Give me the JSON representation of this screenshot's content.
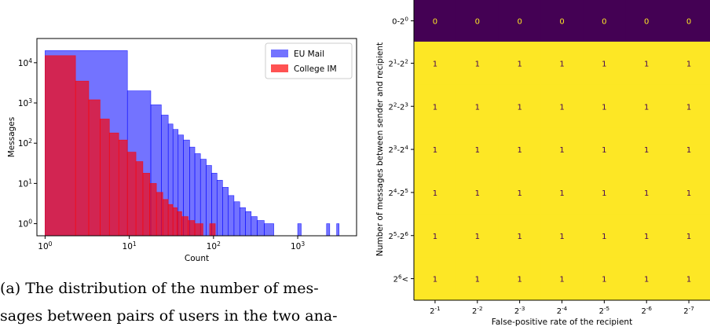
{
  "caption": {
    "line1": "(a) The distribution of the number of mes-",
    "line2": "sages between pairs of users in the two ana-"
  },
  "chart_data": [
    {
      "type": "bar",
      "subtype": "histogram",
      "xlabel": "Count",
      "ylabel": "Messages",
      "xscale": "log",
      "yscale": "log",
      "xlim": [
        0.8,
        5000
      ],
      "ylim": [
        0.5,
        40000
      ],
      "x_ticks": [
        "10^0",
        "10^1",
        "10^2",
        "10^3"
      ],
      "y_ticks": [
        "10^0",
        "10^1",
        "10^2",
        "10^3",
        "10^4"
      ],
      "legend_position": "top-right",
      "grid": false,
      "series": [
        {
          "name": "EU Mail",
          "color": "#0000ff",
          "bins": [
            [
              1,
              9.5,
              20000
            ],
            [
              9.5,
              18,
              2000
            ],
            [
              18,
              24,
              900
            ],
            [
              24,
              29,
              500
            ],
            [
              29,
              33,
              300
            ],
            [
              33,
              38,
              220
            ],
            [
              38,
              44,
              160
            ],
            [
              44,
              52,
              120
            ],
            [
              52,
              60,
              80
            ],
            [
              60,
              70,
              55
            ],
            [
              70,
              82,
              40
            ],
            [
              82,
              95,
              28
            ],
            [
              95,
              110,
              18
            ],
            [
              110,
              128,
              12
            ],
            [
              128,
              150,
              8
            ],
            [
              150,
              175,
              5
            ],
            [
              175,
              205,
              3.5
            ],
            [
              205,
              240,
              2.5
            ],
            [
              240,
              280,
              2
            ],
            [
              280,
              330,
              1.5
            ],
            [
              330,
              400,
              1.2
            ],
            [
              400,
              520,
              1
            ],
            [
              1000,
              1100,
              1
            ],
            [
              2200,
              2400,
              1
            ],
            [
              2900,
              3100,
              1
            ]
          ]
        },
        {
          "name": "College IM",
          "color": "#ff0000",
          "bins": [
            [
              1,
              2.3,
              15000
            ],
            [
              2.3,
              3.3,
              3500
            ],
            [
              3.3,
              4.5,
              1200
            ],
            [
              4.5,
              5.8,
              400
            ],
            [
              5.8,
              7.5,
              180
            ],
            [
              7.5,
              9.5,
              120
            ],
            [
              9.5,
              12,
              60
            ],
            [
              12,
              14.5,
              35
            ],
            [
              14.5,
              17.5,
              18
            ],
            [
              17.5,
              21,
              10
            ],
            [
              21,
              25,
              6
            ],
            [
              25,
              29,
              4
            ],
            [
              29,
              33,
              3
            ],
            [
              33,
              37,
              2.5
            ],
            [
              37,
              42,
              2
            ],
            [
              42,
              50,
              1.5
            ],
            [
              50,
              60,
              1.2
            ],
            [
              60,
              75,
              1
            ],
            [
              90,
              105,
              1
            ]
          ]
        }
      ]
    },
    {
      "type": "heatmap",
      "xlabel": "False-positive rate of the recipient",
      "ylabel": "Number of messages between sender and recipient",
      "x_categories": [
        "2^-1",
        "2^-2",
        "2^-3",
        "2^-4",
        "2^-5",
        "2^-6",
        "2^-7"
      ],
      "y_categories": [
        "0-2^0",
        "2^1-2^2",
        "2^2-2^3",
        "2^3-2^4",
        "2^4-2^5",
        "2^5-2^6",
        "2^6<"
      ],
      "values": [
        [
          0,
          0,
          0,
          0,
          0,
          0,
          0
        ],
        [
          1,
          1,
          1,
          1,
          1,
          1,
          1
        ],
        [
          1,
          1,
          1,
          1,
          1,
          1,
          1
        ],
        [
          1,
          1,
          1,
          1,
          1,
          1,
          1
        ],
        [
          1,
          1,
          1,
          1,
          1,
          1,
          1
        ],
        [
          1,
          1,
          1,
          1,
          1,
          1,
          1
        ],
        [
          1,
          1,
          1,
          1,
          1,
          1,
          1
        ]
      ],
      "colors": {
        "low": "#440154",
        "high": "#fde725",
        "low_text": "#fde725",
        "high_text": "#440154"
      }
    }
  ]
}
